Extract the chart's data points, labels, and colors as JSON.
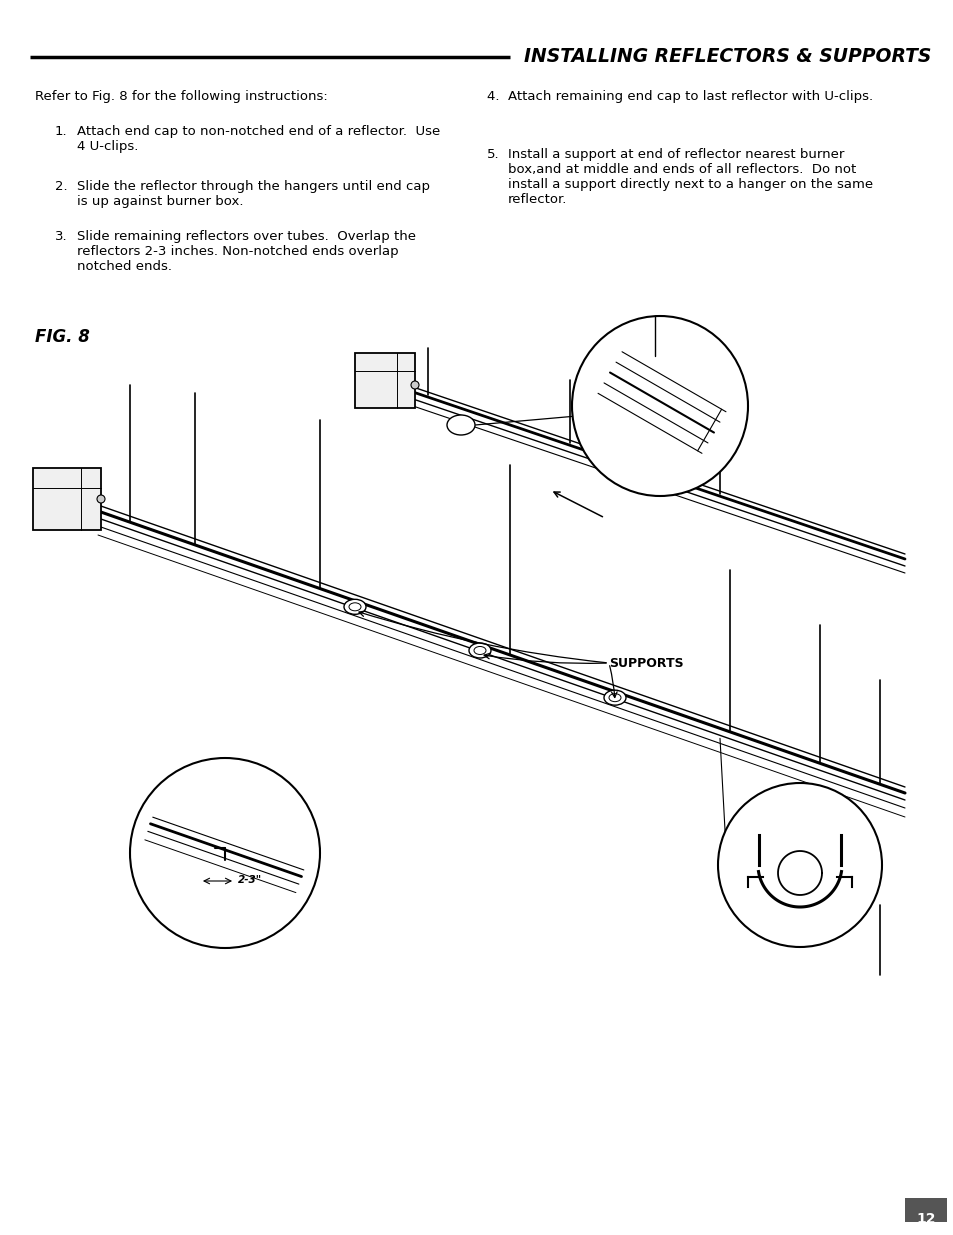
{
  "title": "INSTALLING REFLECTORS & SUPPORTS",
  "page_number": "12",
  "bg": "#ffffff",
  "intro_text": "Refer to Fig. 8 for the following instructions:",
  "item1_num": "1.",
  "item1_text": "Attach end cap to non-notched end of a reflector.  Use\n4 U-clips.",
  "item2_num": "2.",
  "item2_text": "Slide the reflector through the hangers until end cap\nis up against burner box.",
  "item3_num": "3.",
  "item3_text": "Slide remaining reflectors over tubes.  Overlap the\nreflectors 2-3 inches. Non-notched ends overlap\nnotched ends.",
  "item4_text": "4.  Attach remaining end cap to last reflector with U-clips.",
  "item5_num": "5.",
  "item5_text": "Install a support at end of reflector nearest burner\nbox,and at middle and ends of all reflectors.  Do not\ninstall a support directly next to a hanger on the same\nreflector.",
  "fig_label": "FIG. 8",
  "supports_label": "SUPPORTS",
  "dim_label": "2-3\""
}
